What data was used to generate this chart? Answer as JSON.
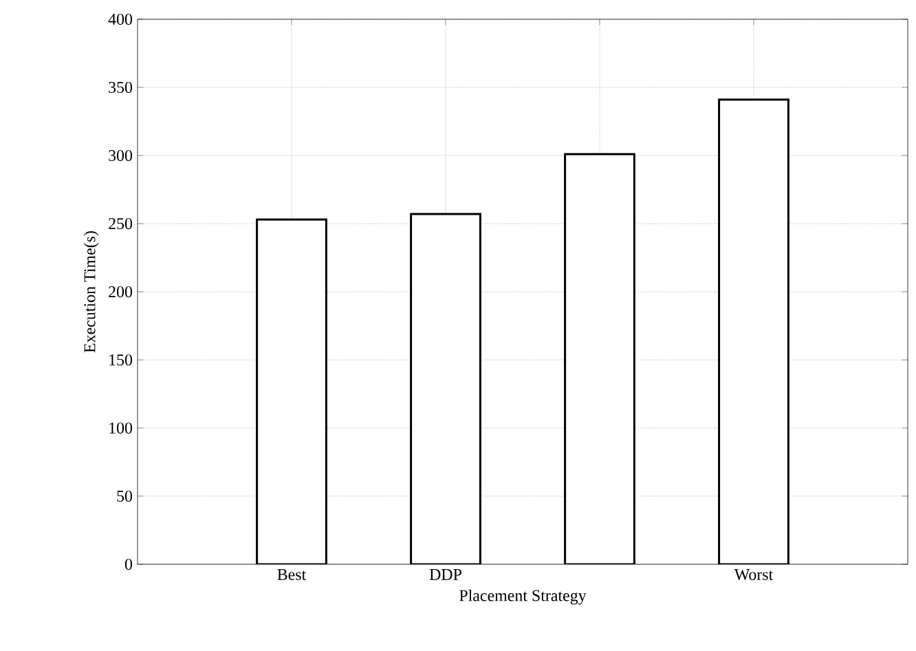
{
  "chart_data": {
    "type": "bar",
    "xlabel": "Placement Strategy",
    "ylabel": "Execution Time(s)",
    "categories": [
      "Best",
      "DDP",
      null,
      "Worst"
    ],
    "values": [
      253,
      257,
      301,
      341
    ],
    "color": "#ffffff",
    "ylim": [
      0,
      400
    ],
    "yticks": [
      0,
      50,
      100,
      150,
      200,
      250,
      300,
      350,
      400
    ],
    "grid": true
  }
}
